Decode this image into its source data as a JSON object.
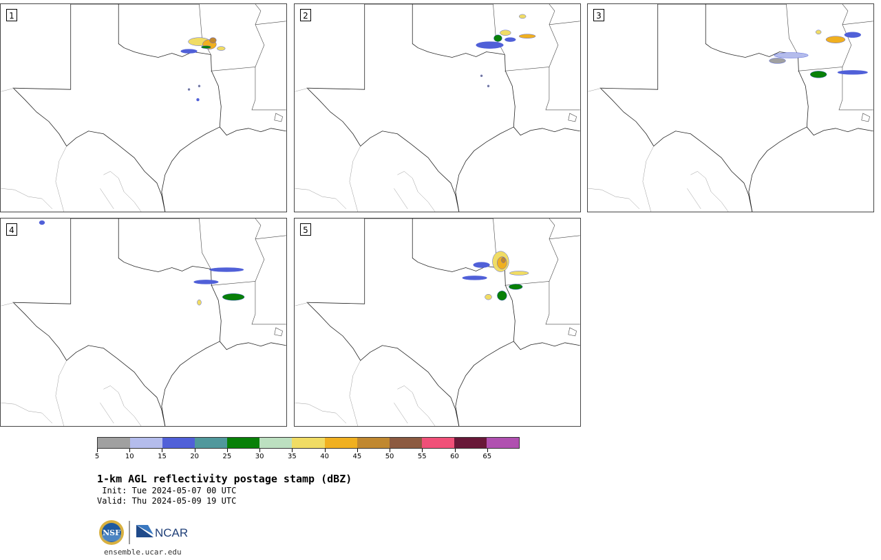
{
  "panels": [
    {
      "id": "1",
      "label": "1"
    },
    {
      "id": "2",
      "label": "2"
    },
    {
      "id": "3",
      "label": "3"
    },
    {
      "id": "4",
      "label": "4"
    },
    {
      "id": "5",
      "label": "5"
    }
  ],
  "colorbar": {
    "colors": [
      "#a0a0a0",
      "#b4bcec",
      "#5060d8",
      "#50989c",
      "#088008",
      "#bce0c0",
      "#f0dc64",
      "#f0b020",
      "#c08830",
      "#8c5a40",
      "#f05078",
      "#681838",
      "#b050b0"
    ],
    "ticks": [
      "5",
      "10",
      "15",
      "20",
      "25",
      "30",
      "35",
      "40",
      "45",
      "50",
      "55",
      "60",
      "65"
    ]
  },
  "title": "1-km AGL reflectivity postage stamp (dBZ)",
  "init": " Init: Tue 2024-05-07 00 UTC",
  "valid": "Valid: Thu 2024-05-09 19 UTC",
  "footer": {
    "site": "ensemble.ucar.edu",
    "nsf_logo_text": "NSF",
    "ncar_logo_text": "NCAR"
  }
}
